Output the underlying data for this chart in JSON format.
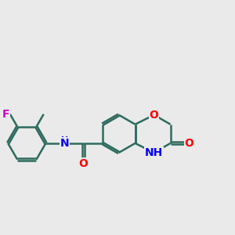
{
  "background_color": "#eaeaea",
  "bond_color": "#2d6b5e",
  "bond_width": 1.8,
  "atom_colors": {
    "O": "#ff0000",
    "N": "#0000ff",
    "F": "#cc00cc",
    "NH_amide": "#0000ff",
    "NH_ring": "#0000ff"
  },
  "font_size": 10,
  "fig_size": [
    3.0,
    3.0
  ],
  "dpi": 100
}
